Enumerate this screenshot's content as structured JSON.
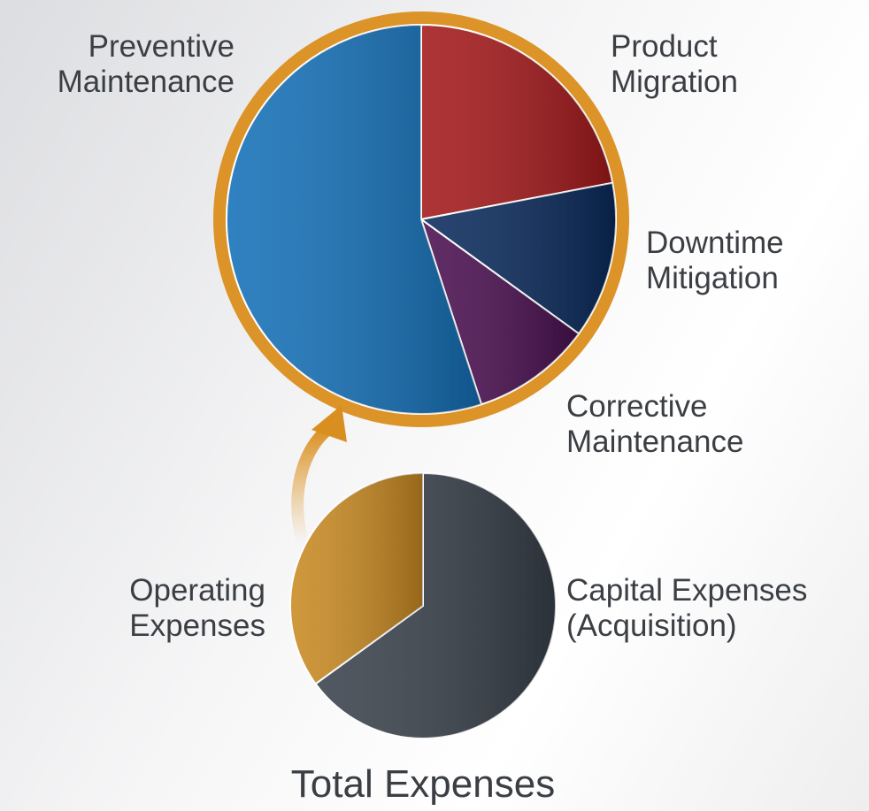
{
  "chart_data": [
    {
      "type": "pie",
      "categories": [
        "Product Migration",
        "Downtime Mitigation",
        "Corrective Maintenance",
        "Preventive Maintenance"
      ],
      "values": [
        22,
        13,
        10,
        55
      ],
      "colors": [
        "#a3181a",
        "#0a2a5c",
        "#4a0f50",
        "#1470b8"
      ]
    },
    {
      "type": "pie",
      "title": "Total Expenses",
      "categories": [
        "Capital Expenses (Acquisition)",
        "Operating Expenses"
      ],
      "values": [
        65,
        35
      ],
      "colors": [
        "#39414b",
        "#c98a22"
      ]
    }
  ]
}
